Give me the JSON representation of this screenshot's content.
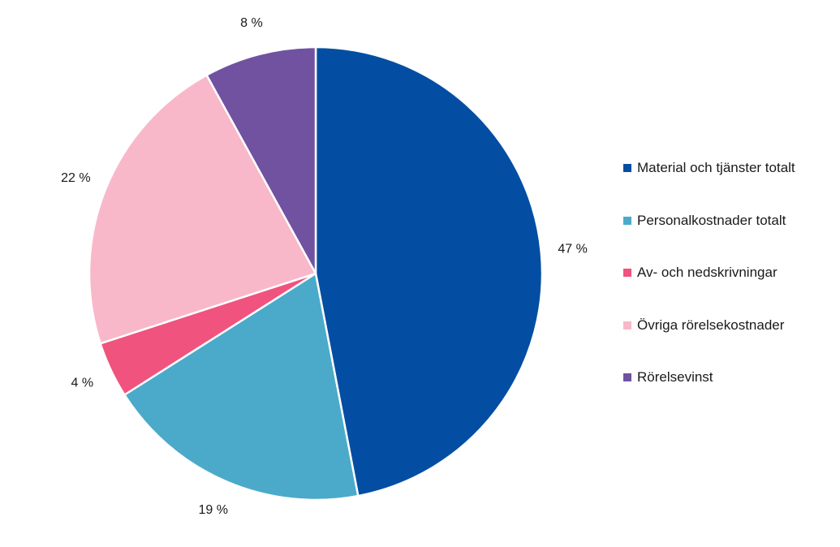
{
  "chart_data": {
    "type": "pie",
    "title": "",
    "start_angle_deg": 0,
    "direction": "clockwise",
    "slices": [
      {
        "name": "Material och tjänster totalt",
        "value": 47,
        "label": "47 %",
        "color": "#034EA2"
      },
      {
        "name": "Personalkostnader totalt",
        "value": 19,
        "label": "19 %",
        "color": "#4BAACA"
      },
      {
        "name": "Av- och nedskrivningar",
        "value": 4,
        "label": "4 %",
        "color": "#EF537E"
      },
      {
        "name": "Övriga rörelsekostnader",
        "value": 22,
        "label": "22 %",
        "color": "#F8B8CA"
      },
      {
        "name": "Rörelsevinst",
        "value": 8,
        "label": "8 %",
        "color": "#7052A1"
      }
    ],
    "legend_position": "right"
  }
}
